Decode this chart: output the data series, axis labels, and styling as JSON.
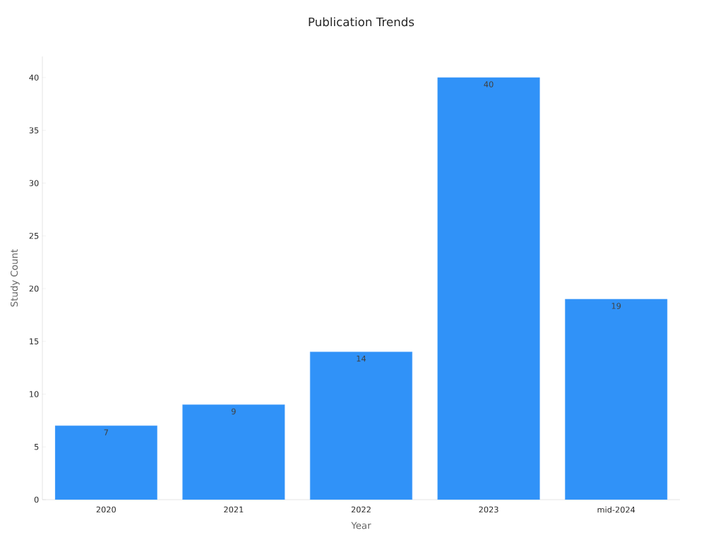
{
  "chart_data": {
    "type": "bar",
    "title": "Publication Trends",
    "xlabel": "Year",
    "ylabel": "Study Count",
    "categories": [
      "2020",
      "2021",
      "2022",
      "2023",
      "mid-2024"
    ],
    "values": [
      7,
      9,
      14,
      40,
      19
    ],
    "color": "#3092f8",
    "data_labels": true,
    "ylim": [
      0,
      42
    ],
    "yticks": [
      0,
      5,
      10,
      15,
      20,
      25,
      30,
      35,
      40
    ],
    "grid": false
  }
}
